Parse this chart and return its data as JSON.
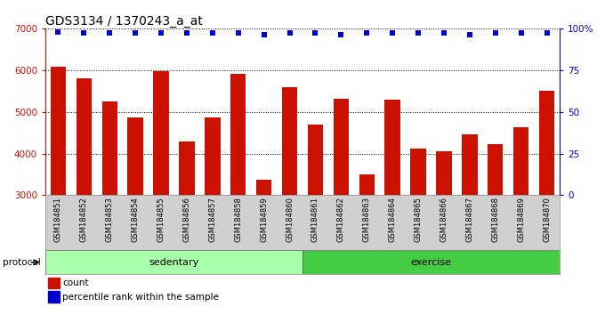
{
  "title": "GDS3134 / 1370243_a_at",
  "samples": [
    "GSM184851",
    "GSM184852",
    "GSM184853",
    "GSM184854",
    "GSM184855",
    "GSM184856",
    "GSM184857",
    "GSM184858",
    "GSM184859",
    "GSM184860",
    "GSM184861",
    "GSM184862",
    "GSM184863",
    "GSM184864",
    "GSM184865",
    "GSM184866",
    "GSM184867",
    "GSM184868",
    "GSM184869",
    "GSM184870"
  ],
  "bar_values": [
    6080,
    5800,
    5250,
    4870,
    5970,
    4280,
    4870,
    5920,
    3380,
    5580,
    4700,
    5310,
    3510,
    5300,
    4120,
    4060,
    4450,
    4230,
    4620,
    5510
  ],
  "percentile_values": [
    98,
    97,
    97,
    97,
    97,
    97,
    97,
    97,
    96,
    97,
    97,
    96,
    97,
    97,
    97,
    97,
    96,
    97,
    97,
    97
  ],
  "bar_color": "#cc1100",
  "dot_color": "#0000cc",
  "ylim_left": [
    3000,
    7000
  ],
  "ylim_right": [
    0,
    100
  ],
  "yticks_left": [
    3000,
    4000,
    5000,
    6000,
    7000
  ],
  "yticks_right": [
    0,
    25,
    50,
    75,
    100
  ],
  "yticklabels_right": [
    "0",
    "25",
    "50",
    "75",
    "100%"
  ],
  "grid_values": [
    4000,
    5000,
    6000
  ],
  "protocol_groups": [
    {
      "label": "sedentary",
      "start": 0,
      "end": 10,
      "color": "#aaffaa"
    },
    {
      "label": "exercise",
      "start": 10,
      "end": 20,
      "color": "#44cc44"
    }
  ],
  "legend_items": [
    {
      "label": "count",
      "color": "#cc1100"
    },
    {
      "label": "percentile rank within the sample",
      "color": "#0000cc"
    }
  ],
  "protocol_label": "protocol",
  "title_fontsize": 10,
  "bar_width": 0.6,
  "plot_bg_color": "#ffffff",
  "xtick_bg_color": "#d0d0d0"
}
